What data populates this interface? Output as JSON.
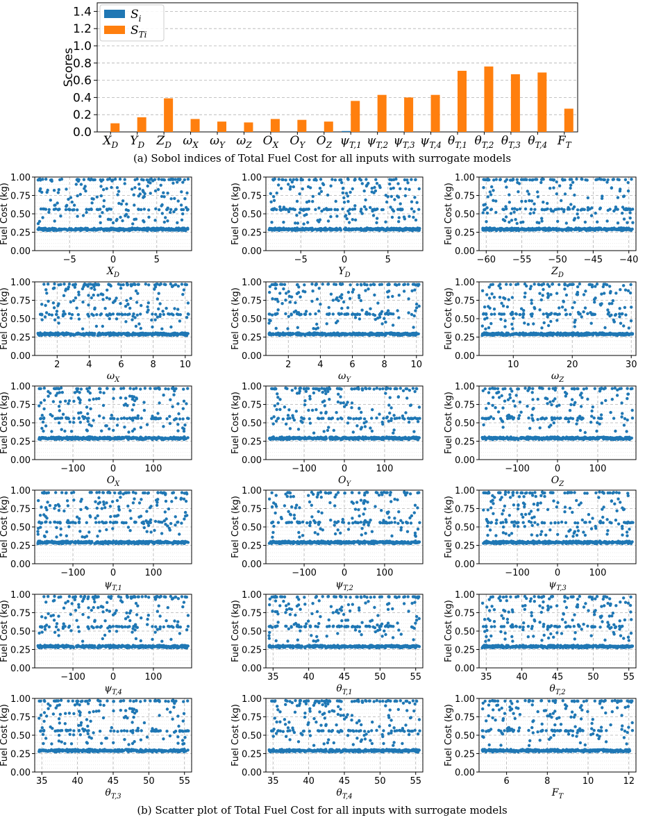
{
  "colors": {
    "si": "#1f77b4",
    "sti": "#ff7f0e",
    "scatter": "#1f77b4",
    "grid": "#b0b0b0"
  },
  "bar_panel": {
    "caption": "(a) Sobol indices of Total Fuel Cost for all inputs with surrogate models",
    "legend": [
      {
        "sym": "S",
        "sub": "i"
      },
      {
        "sym": "S",
        "sub": "Ti"
      }
    ]
  },
  "scatter_panel": {
    "caption": "(b) Scatter plot of Total Fuel Cost for all inputs with surrogate models"
  },
  "chart_data": [
    {
      "type": "bar",
      "ylabel": "Scores",
      "ylim": [
        0,
        1.5
      ],
      "yticks": [
        "0.0",
        "0.2",
        "0.4",
        "0.6",
        "0.8",
        "1.0",
        "1.2",
        "1.4"
      ],
      "grid": true,
      "legend_position": "upper-left",
      "categories": [
        {
          "sym": "X",
          "sub": "D"
        },
        {
          "sym": "Y",
          "sub": "D"
        },
        {
          "sym": "Z",
          "sub": "D"
        },
        {
          "sym": "ω",
          "sub": "X"
        },
        {
          "sym": "ω",
          "sub": "Y"
        },
        {
          "sym": "ω",
          "sub": "Z"
        },
        {
          "sym": "O",
          "sub": "X"
        },
        {
          "sym": "O",
          "sub": "Y"
        },
        {
          "sym": "O",
          "sub": "Z"
        },
        {
          "sym": "ψ",
          "sub": "T,1"
        },
        {
          "sym": "ψ",
          "sub": "T,2"
        },
        {
          "sym": "ψ",
          "sub": "T,3"
        },
        {
          "sym": "ψ",
          "sub": "T,4"
        },
        {
          "sym": "θ",
          "sub": "T,1"
        },
        {
          "sym": "θ",
          "sub": "T,2"
        },
        {
          "sym": "θ",
          "sub": "T,3"
        },
        {
          "sym": "θ",
          "sub": "T,4"
        },
        {
          "sym": "F",
          "sub": "T"
        }
      ],
      "series": [
        {
          "name": "S_i",
          "values": [
            0,
            0,
            0,
            0,
            0,
            0,
            0,
            0,
            0,
            0.01,
            0,
            0,
            0,
            0,
            0,
            0,
            0,
            0
          ]
        },
        {
          "name": "S_Ti",
          "values": [
            0.1,
            0.17,
            0.39,
            0.15,
            0.12,
            0.11,
            0.15,
            0.14,
            0.12,
            0.36,
            0.43,
            0.4,
            0.43,
            0.71,
            0.76,
            0.67,
            0.69,
            0.27
          ]
        }
      ]
    },
    {
      "type": "scatter",
      "ylabel": "Fuel Cost (kg)",
      "ylim": [
        0.0,
        1.0
      ],
      "yticks": [
        "0.00",
        "0.25",
        "0.50",
        "0.75",
        "1.00"
      ],
      "grid": true,
      "point_bands": [
        {
          "center": 0.29,
          "spread": 0.02,
          "share": 0.62
        },
        {
          "center": 0.56,
          "spread": 0.01,
          "share": 0.08
        },
        {
          "center": 0.965,
          "spread": 0.01,
          "share": 0.09
        },
        {
          "low": 0.36,
          "high": 0.95,
          "share": 0.21
        }
      ],
      "panels": [
        {
          "xlabel": {
            "sym": "X",
            "sub": "D"
          },
          "xlim": [
            -9,
            9
          ],
          "xticks": [
            -5,
            0,
            5
          ]
        },
        {
          "xlabel": {
            "sym": "Y",
            "sub": "D"
          },
          "xlim": [
            -9,
            9
          ],
          "xticks": [
            -5,
            0,
            5
          ]
        },
        {
          "xlabel": {
            "sym": "Z",
            "sub": "D"
          },
          "xlim": [
            -61,
            -39
          ],
          "xticks": [
            -60,
            -55,
            -50,
            -45,
            -40
          ]
        },
        {
          "xlabel": {
            "sym": "ω",
            "sub": "X"
          },
          "xlim": [
            0.6,
            10.4
          ],
          "xticks": [
            2,
            4,
            6,
            8,
            10
          ]
        },
        {
          "xlabel": {
            "sym": "ω",
            "sub": "Y"
          },
          "xlim": [
            0.6,
            10.4
          ],
          "xticks": [
            2,
            4,
            6,
            8,
            10
          ]
        },
        {
          "xlabel": {
            "sym": "ω",
            "sub": "Z"
          },
          "xlim": [
            4.2,
            30.8
          ],
          "xticks": [
            10,
            20,
            30
          ]
        },
        {
          "xlabel": {
            "sym": "O",
            "sub": "X"
          },
          "xlim": [
            -195,
            195
          ],
          "xticks": [
            -100,
            0,
            100
          ]
        },
        {
          "xlabel": {
            "sym": "O",
            "sub": "Y"
          },
          "xlim": [
            -195,
            195
          ],
          "xticks": [
            -100,
            0,
            100
          ]
        },
        {
          "xlabel": {
            "sym": "O",
            "sub": "Z"
          },
          "xlim": [
            -195,
            195
          ],
          "xticks": [
            -100,
            0,
            100
          ]
        },
        {
          "xlabel": {
            "sym": "ψ",
            "sub": "T,1"
          },
          "xlim": [
            -195,
            195
          ],
          "xticks": [
            -100,
            0,
            100
          ]
        },
        {
          "xlabel": {
            "sym": "ψ",
            "sub": "T,2"
          },
          "xlim": [
            -195,
            195
          ],
          "xticks": [
            -100,
            0,
            100
          ]
        },
        {
          "xlabel": {
            "sym": "ψ",
            "sub": "T,3"
          },
          "xlim": [
            -195,
            195
          ],
          "xticks": [
            -100,
            0,
            100
          ]
        },
        {
          "xlabel": {
            "sym": "ψ",
            "sub": "T,4"
          },
          "xlim": [
            -195,
            195
          ],
          "xticks": [
            -100,
            0,
            100
          ]
        },
        {
          "xlabel": {
            "sym": "θ",
            "sub": "T,1"
          },
          "xlim": [
            34,
            56
          ],
          "xticks": [
            35,
            40,
            45,
            50,
            55
          ]
        },
        {
          "xlabel": {
            "sym": "θ",
            "sub": "T,2"
          },
          "xlim": [
            34,
            56
          ],
          "xticks": [
            35,
            40,
            45,
            50,
            55
          ]
        },
        {
          "xlabel": {
            "sym": "θ",
            "sub": "T,3"
          },
          "xlim": [
            34,
            56
          ],
          "xticks": [
            35,
            40,
            45,
            50,
            55
          ]
        },
        {
          "xlabel": {
            "sym": "θ",
            "sub": "T,4"
          },
          "xlim": [
            34,
            56
          ],
          "xticks": [
            35,
            40,
            45,
            50,
            55
          ]
        },
        {
          "xlabel": {
            "sym": "F",
            "sub": "T"
          },
          "xlim": [
            4.65,
            12.35
          ],
          "xticks": [
            6,
            8,
            10,
            12
          ]
        }
      ]
    }
  ]
}
